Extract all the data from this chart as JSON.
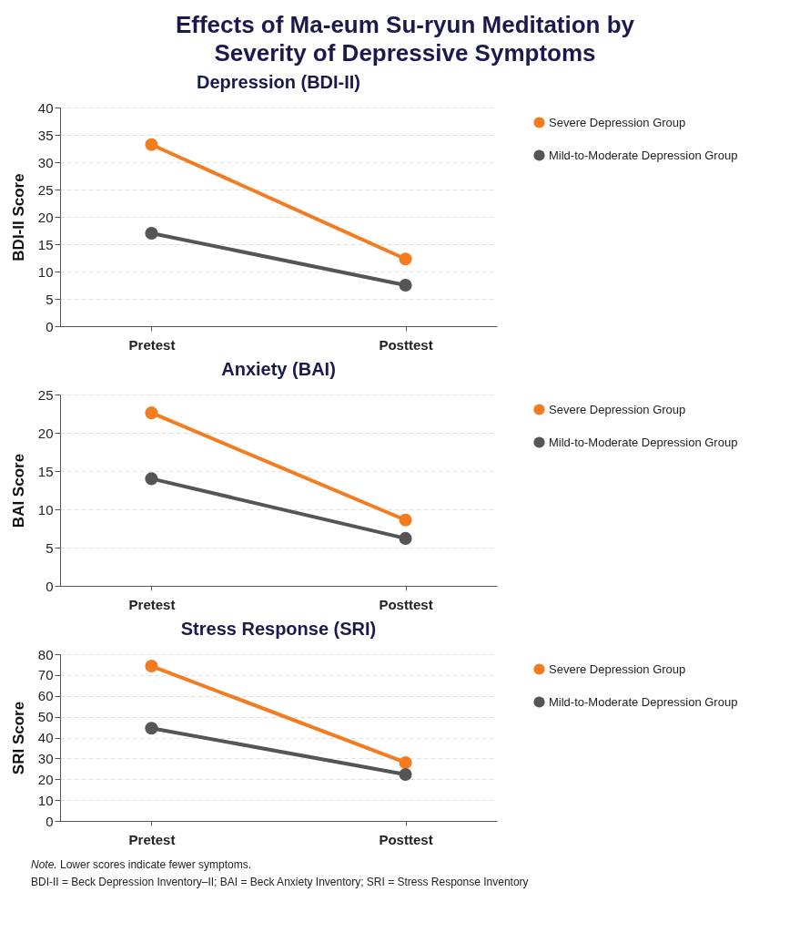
{
  "chart_data": [
    {
      "type": "line",
      "title": "Effects of Ma-eum Su-ryun Meditation by Severity of Depressive Symptoms",
      "subtitle": "Depression (BDI-II)",
      "ylabel": "BDI-II Score",
      "categories": [
        "Pretest",
        "Posttest"
      ],
      "series": [
        {
          "name": "Severe Depression Group",
          "color": "#f47c20",
          "values": [
            33.2,
            12.3
          ]
        },
        {
          "name": "Mild-to-Moderate Depression Group",
          "color": "#555555",
          "values": [
            17,
            7.5
          ]
        }
      ],
      "ylim": [
        0,
        40
      ],
      "yticks": [
        0,
        5,
        10,
        15,
        20,
        25,
        30,
        35,
        40
      ],
      "grid": "y",
      "legend": "right",
      "marker": "circle",
      "line_style": "solid"
    },
    {
      "type": "line",
      "title": "Anxiety (BAI)",
      "ylabel": "BAI Score",
      "categories": [
        "Pretest",
        "Posttest"
      ],
      "series": [
        {
          "name": "Severe Depression Group",
          "color": "#f47c20",
          "values": [
            22.6,
            8.6
          ]
        },
        {
          "name": "Mild-to-Moderate Depression Group",
          "color": "#555555",
          "values": [
            14,
            6.2
          ]
        }
      ],
      "ylim": [
        0,
        25
      ],
      "yticks": [
        0,
        5,
        10,
        15,
        20,
        25
      ],
      "grid": "y",
      "legend": "right",
      "marker": "circle",
      "line_style": "solid"
    },
    {
      "type": "line",
      "title": "Stress Response (SRI)",
      "ylabel": "SRI Score",
      "categories": [
        "Pretest",
        "Posttest"
      ],
      "series": [
        {
          "name": "Severe Depression Group",
          "color": "#f47c20",
          "values": [
            74.3,
            28
          ]
        },
        {
          "name": "Mild-to-Moderate Depression Group",
          "color": "#555555",
          "values": [
            44.5,
            22.3
          ]
        }
      ],
      "ylim": [
        0,
        80
      ],
      "yticks": [
        0,
        10,
        20,
        30,
        40,
        50,
        60,
        70,
        80
      ],
      "grid": "y",
      "legend": "right",
      "marker": "circle",
      "line_style": "solid",
      "annotations": [
        "Note. Lower scores indicate fewer symptoms.",
        "BDI-II = Beck Depression Inventory–II; BAI = Beck Anxiety Inventory; SRI = Stress Response Inventory"
      ]
    }
  ]
}
